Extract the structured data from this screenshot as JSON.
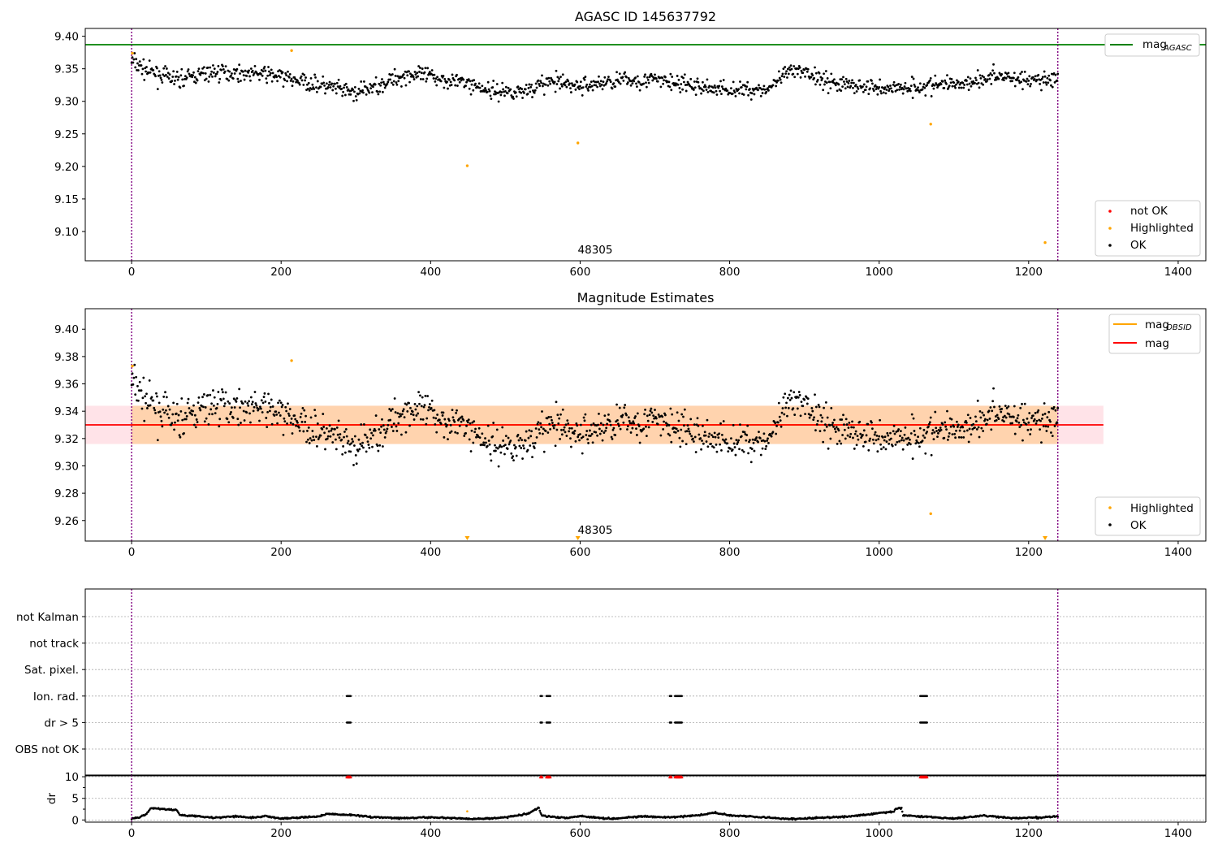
{
  "chart_data": [
    {
      "type": "scatter",
      "title": "AGASC ID 145637792",
      "annotation": "48305",
      "x_ticks": [
        "0",
        "200",
        "400",
        "600",
        "800",
        "1000",
        "1200",
        "1400"
      ],
      "y_ticks": [
        "9.10",
        "9.15",
        "9.20",
        "9.25",
        "9.30",
        "9.35",
        "9.40"
      ],
      "xlim": [
        -62,
        1437
      ],
      "ylim": [
        9.055,
        9.412
      ],
      "reference_lines": {
        "mag_agasc": 9.387,
        "vertical_x": [
          0,
          1239
        ]
      },
      "legend_upper": [
        {
          "label": "mag",
          "sub": "AGASC",
          "color": "#008000"
        }
      ],
      "legend_lower": [
        {
          "label": "not OK",
          "color": "#ff0000"
        },
        {
          "label": "Highlighted",
          "color": "#ffa500"
        },
        {
          "label": "OK",
          "color": "#000000"
        }
      ],
      "series": [
        {
          "name": "Highlighted",
          "color": "#ffa500",
          "points": [
            [
              1,
              9.374
            ],
            [
              214,
              9.378
            ],
            [
              449,
              9.201
            ],
            [
              597,
              9.236
            ],
            [
              1069,
              9.265
            ],
            [
              1222,
              9.083
            ]
          ]
        }
      ],
      "ok_envelope": {
        "x": [
          0,
          20,
          60,
          110,
          180,
          210,
          260,
          300,
          370,
          410,
          450,
          480,
          520,
          560,
          600,
          650,
          700,
          760,
          800,
          850,
          880,
          900,
          940,
          1000,
          1040,
          1080,
          1120,
          1160,
          1200,
          1239
        ],
        "y": [
          9.362,
          9.347,
          9.333,
          9.345,
          9.342,
          9.335,
          9.323,
          9.312,
          9.342,
          9.336,
          9.328,
          9.316,
          9.315,
          9.33,
          9.323,
          9.332,
          9.333,
          9.322,
          9.318,
          9.318,
          9.345,
          9.345,
          9.328,
          9.32,
          9.322,
          9.325,
          9.33,
          9.34,
          9.332,
          9.335
        ],
        "spread": 0.009,
        "count": 1240
      }
    },
    {
      "type": "scatter",
      "title": "Magnitude Estimates",
      "annotation": "48305",
      "x_ticks": [
        "0",
        "200",
        "400",
        "600",
        "800",
        "1000",
        "1200",
        "1400"
      ],
      "y_ticks": [
        "9.26",
        "9.28",
        "9.30",
        "9.32",
        "9.34",
        "9.36",
        "9.38",
        "9.40"
      ],
      "xlim": [
        -62,
        1437
      ],
      "ylim": [
        9.245,
        9.415
      ],
      "mag": 9.33,
      "mag_band": [
        9.316,
        9.344
      ],
      "mag_obsid_band": [
        9.316,
        9.344
      ],
      "reference_lines": {
        "vertical_x": [
          0,
          1239
        ]
      },
      "legend_upper": [
        {
          "label": "mag",
          "sub": "OBSID",
          "color": "#ffa500"
        },
        {
          "label": "mag",
          "sub": "",
          "color": "#ff0000"
        }
      ],
      "legend_lower": [
        {
          "label": "Highlighted",
          "color": "#ffa500"
        },
        {
          "label": "OK",
          "color": "#000000"
        }
      ],
      "series": [
        {
          "name": "Highlighted",
          "color": "#ffa500",
          "points": [
            [
              1,
              9.373
            ],
            [
              214,
              9.377
            ],
            [
              1069,
              9.265
            ]
          ]
        },
        {
          "name": "Highlighted (below axis)",
          "color": "#ffa500",
          "points": [
            [
              449,
              9.247
            ],
            [
              597,
              9.247
            ],
            [
              1222,
              9.247
            ]
          ]
        }
      ]
    },
    {
      "type": "scatter",
      "title": "",
      "categories": [
        "not Kalman",
        "not track",
        "Sat. pixel.",
        "Ion. rad.",
        "dr > 5",
        "OBS not OK"
      ],
      "x_ticks": [
        "0",
        "200",
        "400",
        "600",
        "800",
        "1000",
        "1200",
        "1400"
      ],
      "xlim": [
        -62,
        1437
      ],
      "flag_clusters": {
        "Ion. rad.": [
          [
            288,
            293
          ],
          [
            547,
            549
          ],
          [
            555,
            560
          ],
          [
            720,
            722
          ],
          [
            727,
            736
          ],
          [
            1055,
            1064
          ]
        ],
        "dr > 5": [
          [
            288,
            293
          ],
          [
            547,
            549
          ],
          [
            555,
            560
          ],
          [
            720,
            722
          ],
          [
            727,
            736
          ],
          [
            1055,
            1064
          ]
        ],
        "not Kalman": [],
        "not track": [],
        "Sat. pixel.": [],
        "OBS not OK": []
      }
    },
    {
      "type": "scatter",
      "title": "",
      "ylabel": "dr",
      "y_ticks": [
        "0",
        "5",
        "10"
      ],
      "x_ticks": [
        "0",
        "200",
        "400",
        "600",
        "800",
        "1000",
        "1200",
        "1400"
      ],
      "xlim": [
        -62,
        1437
      ],
      "ylim": [
        -0.5,
        10.4
      ],
      "dr_over_5_clusters": [
        [
          288,
          293
        ],
        [
          547,
          549
        ],
        [
          555,
          560
        ],
        [
          720,
          722
        ],
        [
          727,
          736
        ],
        [
          1055,
          1064
        ]
      ],
      "dr_profile": {
        "x": [
          0,
          10,
          20,
          25,
          30,
          60,
          65,
          90,
          110,
          140,
          160,
          180,
          200,
          250,
          260,
          300,
          320,
          360,
          400,
          440,
          460,
          500,
          520,
          530,
          540,
          545,
          548,
          560,
          580,
          600,
          640,
          680,
          720,
          760,
          780,
          800,
          840,
          880,
          920,
          960,
          1000,
          1020,
          1022,
          1030,
          1032,
          1060,
          1100,
          1140,
          1180,
          1220,
          1239
        ],
        "y": [
          0.3,
          0.5,
          1.4,
          2.6,
          2.7,
          2.3,
          1.1,
          0.9,
          0.5,
          0.9,
          0.5,
          0.9,
          0.3,
          0.8,
          1.4,
          1.1,
          0.7,
          0.4,
          0.6,
          0.4,
          0.2,
          0.6,
          1.2,
          1.4,
          2.4,
          2.8,
          1.1,
          0.8,
          0.5,
          0.9,
          0.3,
          0.8,
          0.6,
          1.1,
          1.7,
          1.1,
          0.7,
          0.2,
          0.5,
          0.8,
          1.6,
          1.9,
          2.7,
          2.7,
          1.1,
          0.8,
          0.3,
          1.0,
          0.4,
          0.6,
          0.9
        ]
      }
    }
  ]
}
